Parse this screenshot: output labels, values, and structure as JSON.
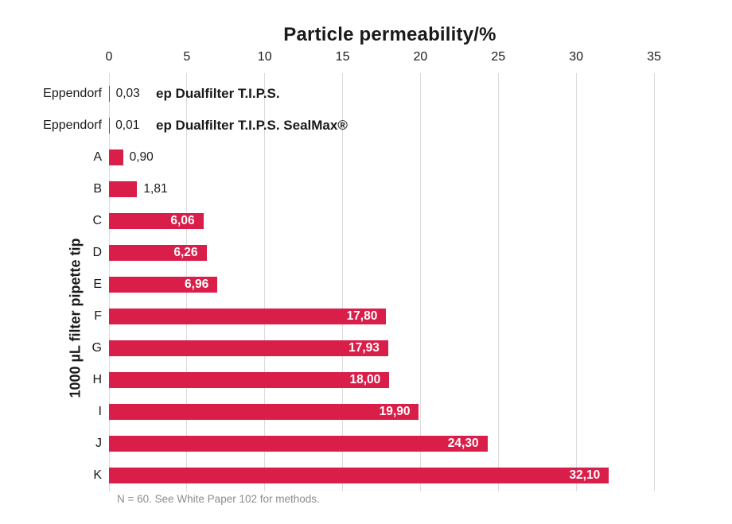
{
  "chart_data": {
    "type": "bar",
    "orientation": "horizontal",
    "title": "Particle permeability/%",
    "xlabel": "Particle permeability/%",
    "ylabel": "1000 µL filter pipette tip",
    "xlim": [
      0,
      35
    ],
    "xticks": [
      0,
      5,
      10,
      15,
      20,
      25,
      30,
      35
    ],
    "grid": "vertical",
    "legend": "none",
    "decimal_separator": ",",
    "rows": [
      {
        "category": "Eppendorf",
        "value": 0.03,
        "display": "0,03",
        "annotation": "ep Dualfilter T.I.P.S.",
        "value_placement": "outside"
      },
      {
        "category": "Eppendorf",
        "value": 0.01,
        "display": "0,01",
        "annotation": "ep Dualfilter T.I.P.S. SealMax®",
        "value_placement": "outside"
      },
      {
        "category": "A",
        "value": 0.9,
        "display": "0,90",
        "value_placement": "outside"
      },
      {
        "category": "B",
        "value": 1.81,
        "display": "1,81",
        "value_placement": "outside"
      },
      {
        "category": "C",
        "value": 6.06,
        "display": "6,06",
        "value_placement": "inside"
      },
      {
        "category": "D",
        "value": 6.26,
        "display": "6,26",
        "value_placement": "inside"
      },
      {
        "category": "E",
        "value": 6.96,
        "display": "6,96",
        "value_placement": "inside"
      },
      {
        "category": "F",
        "value": 17.8,
        "display": "17,80",
        "value_placement": "inside"
      },
      {
        "category": "G",
        "value": 17.93,
        "display": "17,93",
        "value_placement": "inside"
      },
      {
        "category": "H",
        "value": 18.0,
        "display": "18,00",
        "value_placement": "inside"
      },
      {
        "category": "I",
        "value": 19.9,
        "display": "19,90",
        "value_placement": "inside"
      },
      {
        "category": "J",
        "value": 24.3,
        "display": "24,30",
        "value_placement": "inside"
      },
      {
        "category": "K",
        "value": 32.1,
        "display": "32,10",
        "value_placement": "inside"
      }
    ],
    "footnote": "N = 60. See White Paper 102 for methods.",
    "colors": {
      "bar": "#D91E49",
      "grid": "#DBDBDB",
      "text": "#1A1A1A",
      "value_inside": "#FFFFFF",
      "footnote": "#8C8C8C",
      "background": "#FFFFFF"
    }
  }
}
